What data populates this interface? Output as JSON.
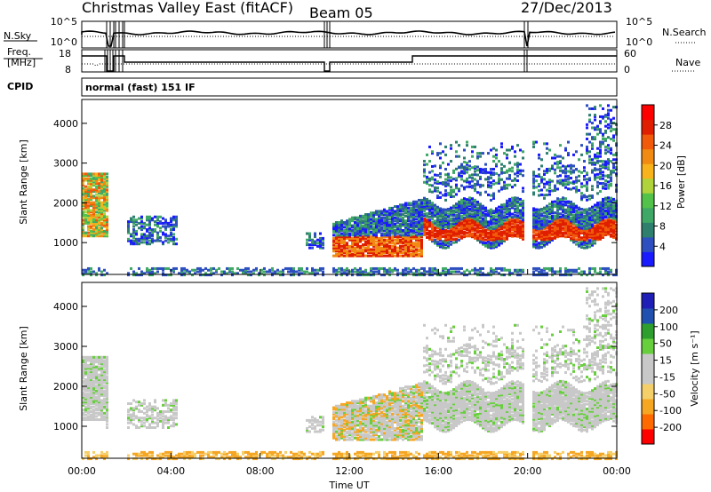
{
  "header": {
    "title": "Christmas Valley East (fitACF)",
    "beam": "Beam 05",
    "date": "27/Dec/2013"
  },
  "labels": {
    "nsky": "N.Sky",
    "nsearch": "N.Search",
    "freq_line1": "Freq.",
    "freq_line2": "[MHz]",
    "nave": "Nave",
    "cpid": "CPID",
    "cpid_value": "normal (fast) 151 IF"
  },
  "colors": {
    "power": [
      "#1a1aff",
      "#2d4fbf",
      "#2e7f6e",
      "#3fa866",
      "#52c24a",
      "#b0d23a",
      "#f7b21c",
      "#f08a12",
      "#f05a0a",
      "#e01e00",
      "#ff0000"
    ],
    "velocity": [
      "#ff0000",
      "#ff6a00",
      "#f5a623",
      "#f5cf6a",
      "#c8c8c8",
      "#c8c8c8",
      "#67cf3c",
      "#2e9e2e",
      "#2050b0",
      "#1f1fb8"
    ]
  },
  "chart_data": [
    {
      "type": "line",
      "name": "noise-panel",
      "yticks_left": [
        "10^5",
        "10^0"
      ],
      "yticks_right": [
        "10^5",
        "10^0"
      ],
      "series": [
        {
          "name": "N.Sky",
          "style": "solid"
        },
        {
          "name": "N.Search",
          "style": "dotted"
        }
      ]
    },
    {
      "type": "line",
      "name": "freq-nave-panel",
      "yticks_left": [
        "18",
        "8"
      ],
      "yticks_right": [
        "60",
        "0"
      ],
      "series": [
        {
          "name": "Freq.",
          "style": "solid"
        },
        {
          "name": "Nave",
          "style": "dotted"
        }
      ]
    },
    {
      "type": "heatmap",
      "name": "power",
      "title": "",
      "xlabel": "",
      "ylabel": "Slant Range [km]",
      "ylim": [
        200,
        4600
      ],
      "yticks": [
        1000,
        2000,
        3000,
        4000
      ],
      "colorbar_label": "Power [dB]",
      "colorbar_ticks": [
        "4",
        "8",
        "12",
        "16",
        "20",
        "24",
        "28"
      ]
    },
    {
      "type": "heatmap",
      "name": "velocity",
      "title": "",
      "xlabel": "Time UT",
      "ylabel": "Slant Range [km]",
      "ylim": [
        200,
        4600
      ],
      "yticks": [
        1000,
        2000,
        3000,
        4000
      ],
      "xticks": [
        "00:00",
        "04:00",
        "08:00",
        "12:00",
        "16:00",
        "20:00",
        "00:00"
      ],
      "colorbar_label": "Velocity [m s⁻¹]",
      "colorbar_ticks": [
        "200",
        "100",
        "50",
        "15",
        "-15",
        "-50",
        "-100",
        "-200"
      ]
    }
  ]
}
